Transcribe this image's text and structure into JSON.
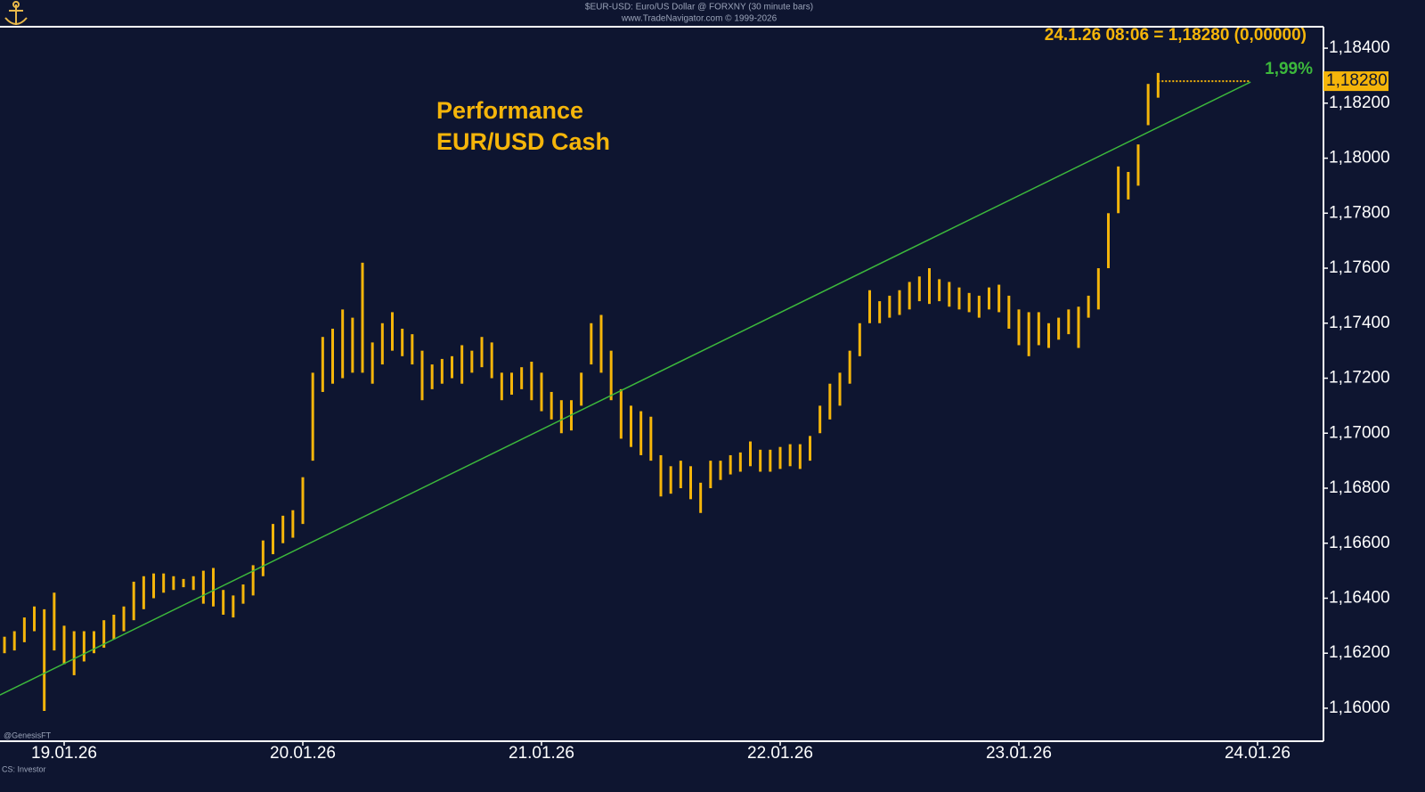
{
  "chart_data": {
    "type": "hlbar",
    "header": "$EUR-USD: Euro/US Dollar @ FORXNY  (30 minute bars)",
    "subheader": "www.TradeNavigator.com © 1999-2026",
    "title_lines": [
      "Performance",
      "EUR/USD Cash"
    ],
    "quote": "24.1.26 08:06 = 1,18280 (0,00000)",
    "performance_label": "1,99%",
    "last_price": {
      "value": 1.1828,
      "label": "1,18280"
    },
    "watermark": "@GenesisFT",
    "footer": "CS: Investor",
    "color": "#f5b50a",
    "trendline": {
      "x": [
        -6.45,
        119.3
      ],
      "y": [
        1.16048,
        1.18277
      ],
      "color": "#3cb83c"
    },
    "xlim": [
      -6.45,
      126.54
    ],
    "xticks": [
      {
        "value": 0,
        "label": "19.01.26"
      },
      {
        "value": 24,
        "label": "20.01.26"
      },
      {
        "value": 48,
        "label": "21.01.26"
      },
      {
        "value": 72,
        "label": "22.01.26"
      },
      {
        "value": 96,
        "label": "23.01.26"
      },
      {
        "value": 120,
        "label": "24.01.26"
      }
    ],
    "ylim": [
      1.1588,
      1.18478
    ],
    "yticks": [
      {
        "value": 1.16,
        "label": "1,16000"
      },
      {
        "value": 1.162,
        "label": "1,16200"
      },
      {
        "value": 1.164,
        "label": "1,16400"
      },
      {
        "value": 1.166,
        "label": "1,16600"
      },
      {
        "value": 1.168,
        "label": "1,16800"
      },
      {
        "value": 1.17,
        "label": "1,17000"
      },
      {
        "value": 1.172,
        "label": "1,17200"
      },
      {
        "value": 1.174,
        "label": "1,17400"
      },
      {
        "value": 1.176,
        "label": "1,17600"
      },
      {
        "value": 1.178,
        "label": "1,17800"
      },
      {
        "value": 1.18,
        "label": "1,18000"
      },
      {
        "value": 1.182,
        "label": "1,18200"
      },
      {
        "value": 1.184,
        "label": "1,18400"
      }
    ],
    "x": [
      -6,
      -5,
      -4,
      -3,
      -2,
      -1,
      0,
      1,
      2,
      3,
      4,
      5,
      6,
      7,
      8,
      9,
      10,
      11,
      12,
      13,
      14,
      15,
      16,
      17,
      18,
      19,
      20,
      21,
      22,
      23,
      24,
      25,
      26,
      27,
      28,
      29,
      30,
      31,
      32,
      33,
      34,
      35,
      36,
      37,
      38,
      39,
      40,
      41,
      42,
      43,
      44,
      45,
      46,
      47,
      48,
      49,
      50,
      51,
      52,
      53,
      54,
      55,
      56,
      57,
      58,
      59,
      60,
      61,
      62,
      63,
      64,
      65,
      66,
      67,
      68,
      69,
      70,
      71,
      72,
      73,
      74,
      75,
      76,
      77,
      78,
      79,
      80,
      81,
      82,
      83,
      84,
      85,
      86,
      87,
      88,
      89,
      90,
      91,
      92,
      93,
      94,
      95,
      96,
      97,
      98,
      99,
      100,
      101,
      102,
      103,
      104,
      105,
      106,
      107,
      108,
      109,
      110
    ],
    "high": [
      1.1626,
      1.1628,
      1.1633,
      1.1637,
      1.1636,
      1.1642,
      1.163,
      1.1628,
      1.1628,
      1.1628,
      1.1632,
      1.1634,
      1.1637,
      1.1646,
      1.1648,
      1.1649,
      1.1649,
      1.1648,
      1.1647,
      1.1648,
      1.165,
      1.1651,
      1.1643,
      1.1641,
      1.1645,
      1.1652,
      1.1661,
      1.1667,
      1.167,
      1.1672,
      1.1684,
      1.1722,
      1.1735,
      1.1738,
      1.1745,
      1.1742,
      1.1762,
      1.1733,
      1.174,
      1.1744,
      1.1738,
      1.1736,
      1.173,
      1.1725,
      1.1727,
      1.1728,
      1.1732,
      1.173,
      1.1735,
      1.1733,
      1.1722,
      1.1722,
      1.1724,
      1.1726,
      1.1722,
      1.1715,
      1.1712,
      1.1712,
      1.1722,
      1.174,
      1.1743,
      1.173,
      1.1716,
      1.171,
      1.1708,
      1.1706,
      1.1692,
      1.1688,
      1.169,
      1.1688,
      1.1682,
      1.169,
      1.169,
      1.1692,
      1.1693,
      1.1697,
      1.1694,
      1.1694,
      1.1695,
      1.1696,
      1.1696,
      1.1699,
      1.171,
      1.1718,
      1.1722,
      1.173,
      1.174,
      1.1752,
      1.1748,
      1.175,
      1.1752,
      1.1755,
      1.1757,
      1.176,
      1.1756,
      1.1755,
      1.1753,
      1.1751,
      1.175,
      1.1753,
      1.1754,
      1.175,
      1.1745,
      1.1744,
      1.1744,
      1.174,
      1.1742,
      1.1745,
      1.1746,
      1.175,
      1.176,
      1.178,
      1.1797,
      1.1795,
      1.1805,
      1.1827,
      1.1831
    ],
    "low": [
      1.162,
      1.1621,
      1.1624,
      1.1628,
      1.1599,
      1.1621,
      1.1616,
      1.1612,
      1.1617,
      1.162,
      1.1622,
      1.1625,
      1.1628,
      1.1632,
      1.1636,
      1.164,
      1.1642,
      1.1643,
      1.1644,
      1.1643,
      1.1638,
      1.1637,
      1.1634,
      1.1633,
      1.1638,
      1.1641,
      1.1648,
      1.1656,
      1.166,
      1.1662,
      1.1667,
      1.169,
      1.1715,
      1.1718,
      1.172,
      1.1722,
      1.1722,
      1.1718,
      1.1725,
      1.173,
      1.1728,
      1.1725,
      1.1712,
      1.1716,
      1.1718,
      1.172,
      1.1718,
      1.1722,
      1.1724,
      1.172,
      1.1712,
      1.1714,
      1.1716,
      1.1712,
      1.1708,
      1.1705,
      1.17,
      1.1701,
      1.171,
      1.1725,
      1.1722,
      1.1712,
      1.1698,
      1.1695,
      1.1692,
      1.169,
      1.1677,
      1.1678,
      1.168,
      1.1676,
      1.1671,
      1.168,
      1.1683,
      1.1685,
      1.1686,
      1.1688,
      1.1686,
      1.1686,
      1.1687,
      1.1688,
      1.1687,
      1.169,
      1.17,
      1.1705,
      1.171,
      1.1718,
      1.1728,
      1.174,
      1.174,
      1.1742,
      1.1743,
      1.1745,
      1.1748,
      1.1747,
      1.1748,
      1.1746,
      1.1745,
      1.1744,
      1.1742,
      1.1745,
      1.1744,
      1.1738,
      1.1732,
      1.1728,
      1.1732,
      1.1731,
      1.1734,
      1.1736,
      1.1731,
      1.1742,
      1.1745,
      1.176,
      1.178,
      1.1785,
      1.179,
      1.1812,
      1.1822
    ]
  }
}
